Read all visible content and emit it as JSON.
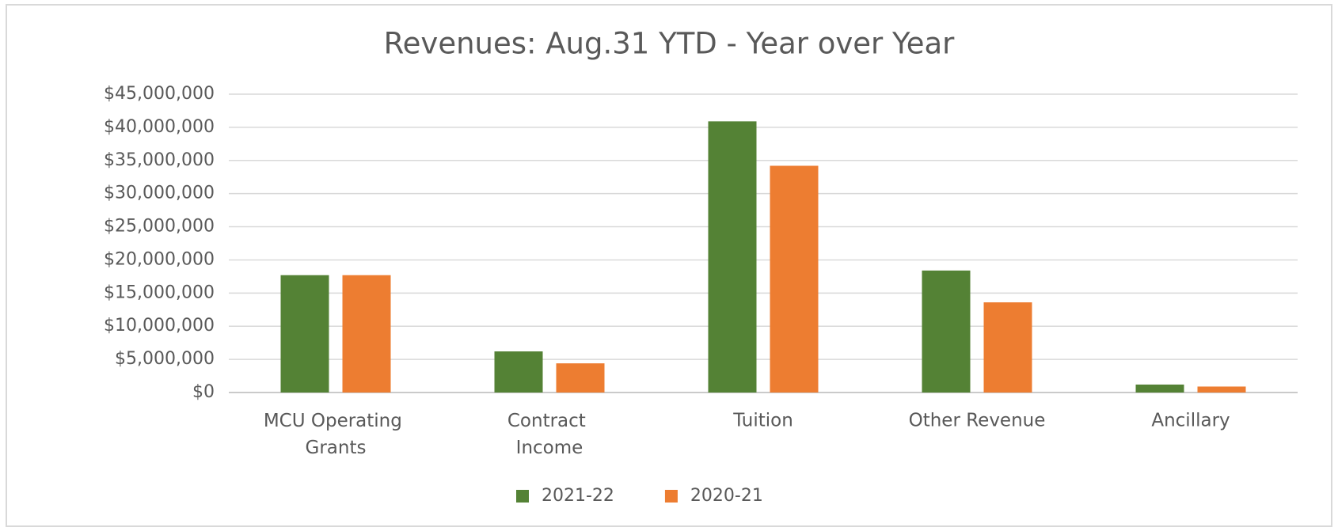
{
  "chart_data": {
    "type": "bar",
    "title": "Revenues:   Aug.31 YTD - Year over Year",
    "categories": [
      "MCU Operating Grants",
      "Contract Income",
      "Tuition",
      "Other Revenue",
      "Ancillary"
    ],
    "series": [
      {
        "name": "2021-22",
        "color": "#548235",
        "values": [
          17700000,
          6200000,
          40900000,
          18400000,
          1200000
        ]
      },
      {
        "name": "2020-21",
        "color": "#ed7d31",
        "values": [
          17700000,
          4400000,
          34200000,
          13600000,
          900000
        ]
      }
    ],
    "ylim": [
      0,
      45000000
    ],
    "yticks": [
      {
        "value": 0,
        "label": "$0"
      },
      {
        "value": 5000000,
        "label": "$5,000,000"
      },
      {
        "value": 10000000,
        "label": "$10,000,000"
      },
      {
        "value": 15000000,
        "label": "$15,000,000"
      },
      {
        "value": 20000000,
        "label": "$20,000,000"
      },
      {
        "value": 25000000,
        "label": "$25,000,000"
      },
      {
        "value": 30000000,
        "label": "$30,000,000"
      },
      {
        "value": 35000000,
        "label": "$35,000,000"
      },
      {
        "value": 40000000,
        "label": "$40,000,000"
      },
      {
        "value": 45000000,
        "label": "$45,000,000"
      }
    ],
    "grid": true,
    "legend": "bottom"
  }
}
